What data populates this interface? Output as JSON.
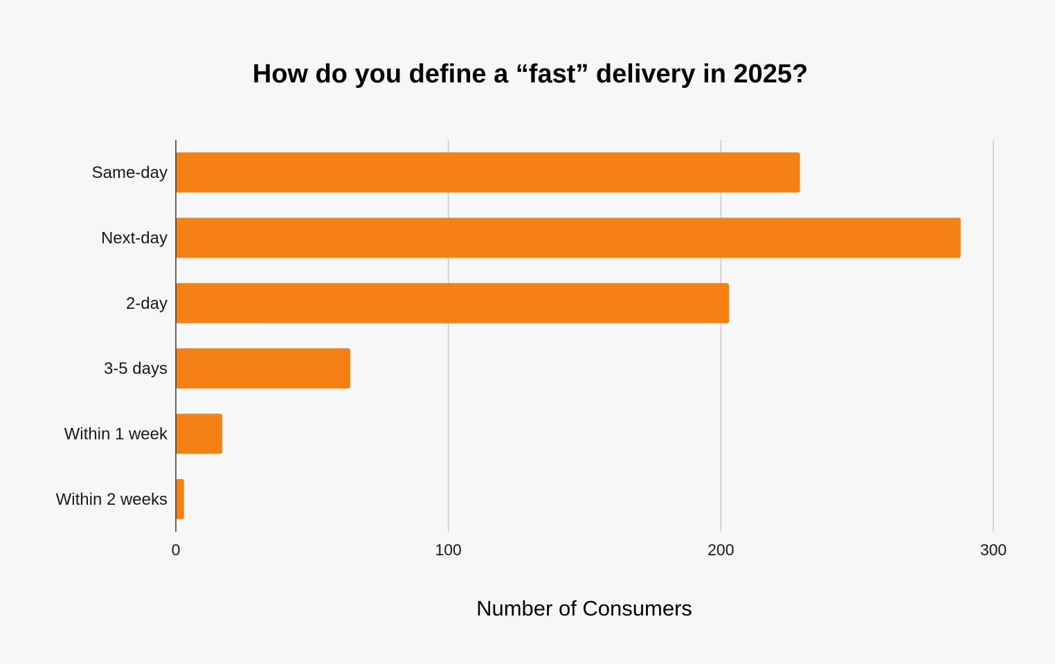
{
  "chart_data": {
    "type": "bar",
    "orientation": "horizontal",
    "title": "How do you define a “fast” delivery in 2025?",
    "xlabel": "Number of Consumers",
    "ylabel": "",
    "categories": [
      "Same-day",
      "Next-day",
      "2-day",
      "3-5 days",
      "Within 1 week",
      "Within 2 weeks"
    ],
    "values": [
      229,
      288,
      203,
      64,
      17,
      3
    ],
    "xlim": [
      0,
      300
    ],
    "xticks": [
      0,
      100,
      200,
      300
    ],
    "xtick_labels": [
      "0",
      "100",
      "200",
      "300"
    ],
    "grid": true,
    "legend": "none",
    "colors": {
      "bar": "#f58013",
      "grid": "#c8c8c8",
      "axis": "#333333",
      "background": "#f7f7f7"
    }
  }
}
